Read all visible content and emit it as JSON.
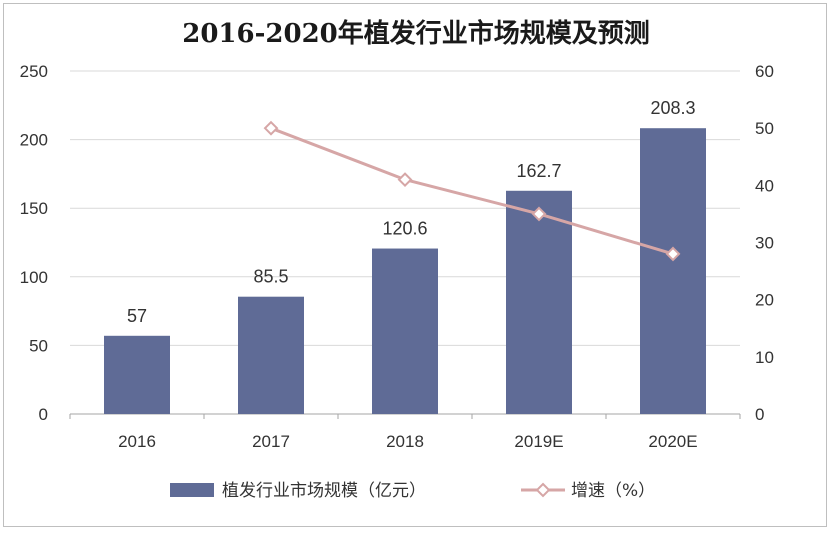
{
  "chart_data": {
    "type": "bar",
    "title": "2016-2020年植发行业市场规模及预测",
    "categories": [
      "2016",
      "2017",
      "2018",
      "2019E",
      "2020E"
    ],
    "series": [
      {
        "name": "植发行业市场规模（亿元）",
        "type": "bar",
        "axis": "left",
        "values": [
          57,
          85.5,
          120.6,
          162.7,
          208.3
        ],
        "data_labels": [
          "57",
          "85.5",
          "120.6",
          "162.7",
          "208.3"
        ],
        "color": "#5f6b96"
      },
      {
        "name": "增速（%）",
        "type": "line",
        "axis": "right",
        "values": [
          null,
          50,
          41,
          35,
          28
        ],
        "color": "#d6a6a6",
        "marker": "diamond"
      }
    ],
    "y_left": {
      "ylim": [
        0,
        250
      ],
      "ticks": [
        "0",
        "50",
        "100",
        "150",
        "200",
        "250"
      ]
    },
    "y_right": {
      "ylim": [
        0,
        60
      ],
      "ticks": [
        "0",
        "10",
        "20",
        "30",
        "40",
        "50",
        "60"
      ]
    },
    "grid": true,
    "legend_position": "bottom"
  }
}
